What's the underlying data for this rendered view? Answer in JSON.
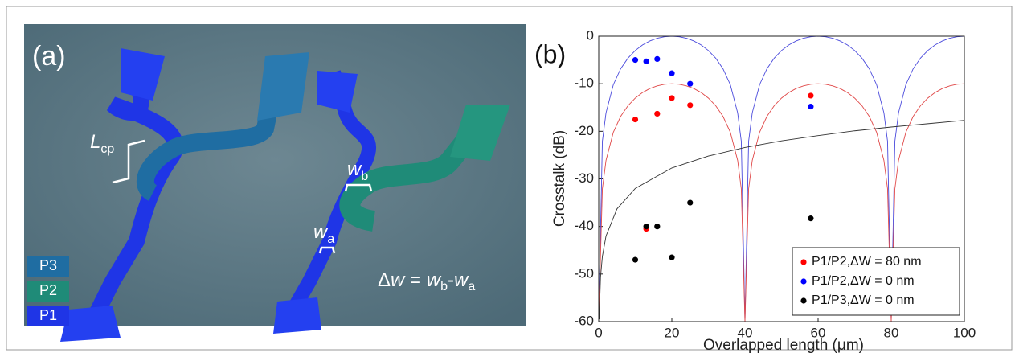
{
  "panel_a": {
    "label": "(a)",
    "lcp_main": "L",
    "lcp_sub": "cp",
    "wb_main": "w",
    "wb_sub": "b",
    "wa_main": "w",
    "wa_sub": "a",
    "eq": {
      "lhs": "Δ",
      "w0": "w",
      "eq": " = ",
      "w1": "w",
      "s1": "b",
      "minus": "-",
      "w2": "w",
      "s2": "a"
    },
    "ports": [
      "P3",
      "P2",
      "P1"
    ]
  },
  "chart_data": {
    "type": "scatter",
    "panel_label": "(b)",
    "x_label": "Overlapped length (μm)",
    "y_label": "Crosstalk (dB)",
    "xlim": [
      0,
      100
    ],
    "ylim": [
      -60,
      0
    ],
    "xticks": [
      0,
      20,
      40,
      60,
      80,
      100
    ],
    "yticks": [
      0,
      -10,
      -20,
      -30,
      -40,
      -50,
      -60
    ],
    "grid": false,
    "legend": "lower right",
    "series": [
      {
        "mode": "line",
        "color": "#4a4adc",
        "x": [
          0,
          1,
          2,
          4,
          6,
          8,
          10,
          12,
          14,
          16,
          18,
          20,
          22,
          24,
          26,
          28,
          30,
          32,
          34,
          36,
          38,
          39,
          40,
          41,
          42,
          44,
          46,
          48,
          50,
          52,
          54,
          56,
          58,
          60,
          62,
          64,
          66,
          68,
          70,
          72,
          74,
          76,
          78,
          79,
          80,
          81,
          82,
          84,
          86,
          88,
          90,
          92,
          94,
          96,
          98,
          100
        ],
        "values": [
          -60,
          -22.11,
          -16.11,
          -10.2,
          -6.86,
          -4.62,
          -3.01,
          -1.84,
          -1.0,
          -0.44,
          -0.11,
          0,
          -0.11,
          -0.44,
          -1.0,
          -1.84,
          -3.01,
          -4.62,
          -6.86,
          -10.2,
          -16.11,
          -22.11,
          -60,
          -22.11,
          -16.11,
          -10.2,
          -6.86,
          -4.62,
          -3.01,
          -1.84,
          -1.0,
          -0.44,
          -0.11,
          0,
          -0.11,
          -0.44,
          -1.0,
          -1.84,
          -3.01,
          -4.62,
          -6.86,
          -10.2,
          -16.11,
          -22.11,
          -60,
          -22.11,
          -16.11,
          -10.2,
          -6.86,
          -4.62,
          -3.01,
          -1.84,
          -1.0,
          -0.44,
          -0.11,
          0
        ]
      },
      {
        "mode": "line",
        "color": "#e04848",
        "x": [
          0,
          1,
          2,
          4,
          6,
          8,
          10,
          12,
          14,
          16,
          18,
          20,
          22,
          24,
          26,
          28,
          30,
          32,
          34,
          36,
          38,
          39,
          40,
          41,
          42,
          44,
          46,
          48,
          50,
          52,
          54,
          56,
          58,
          60,
          62,
          64,
          66,
          68,
          70,
          72,
          74,
          76,
          78,
          79,
          80,
          81,
          82,
          84,
          86,
          88,
          90,
          92,
          94,
          96,
          98,
          100
        ],
        "values": [
          -60,
          -32.11,
          -26.11,
          -20.2,
          -16.86,
          -14.62,
          -13.01,
          -11.84,
          -11.0,
          -10.44,
          -10.11,
          -10,
          -10.11,
          -10.44,
          -11.0,
          -11.84,
          -13.01,
          -14.62,
          -16.86,
          -20.2,
          -26.11,
          -32.11,
          -60,
          -32.11,
          -26.11,
          -20.2,
          -16.86,
          -14.62,
          -13.01,
          -11.84,
          -11.0,
          -10.44,
          -10.11,
          -10,
          -10.11,
          -10.44,
          -11.0,
          -11.84,
          -13.01,
          -14.62,
          -16.86,
          -20.2,
          -26.11,
          -32.11,
          -60,
          -32.11,
          -26.11,
          -20.2,
          -16.86,
          -14.62,
          -13.01,
          -11.84,
          -11.0,
          -10.44,
          -10.11,
          -10
        ]
      },
      {
        "mode": "line",
        "color": "#333333",
        "x": [
          0.12,
          0.5,
          1,
          2,
          5,
          10,
          20,
          30,
          40,
          50,
          60,
          70,
          80,
          90,
          100
        ],
        "values": [
          -59.5,
          -50.6,
          -46.3,
          -42.0,
          -36.3,
          -32.0,
          -27.7,
          -25.2,
          -23.4,
          -22.0,
          -20.9,
          -19.9,
          -19.1,
          -18.4,
          -17.7
        ]
      },
      {
        "mode": "markers",
        "name": "P1/P2,ΔW = 80 nm",
        "color": "#ff0000",
        "x": [
          10,
          13,
          16,
          20,
          25,
          58
        ],
        "values": [
          -17.5,
          -40.5,
          -16.3,
          -13,
          -14.5,
          -12.5
        ]
      },
      {
        "mode": "markers",
        "name": "P1/P2,ΔW = 0 nm",
        "color": "#0000ff",
        "x": [
          10,
          13,
          16,
          20,
          25,
          58
        ],
        "values": [
          -5,
          -5.3,
          -4.8,
          -7.8,
          -10,
          -14.8
        ]
      },
      {
        "mode": "markers",
        "name": "P1/P3,ΔW = 0 nm",
        "color": "#000000",
        "x": [
          10,
          13,
          16,
          20,
          25,
          58
        ],
        "values": [
          -47,
          -40,
          -40,
          -46.5,
          -35,
          -38.3
        ]
      }
    ]
  }
}
